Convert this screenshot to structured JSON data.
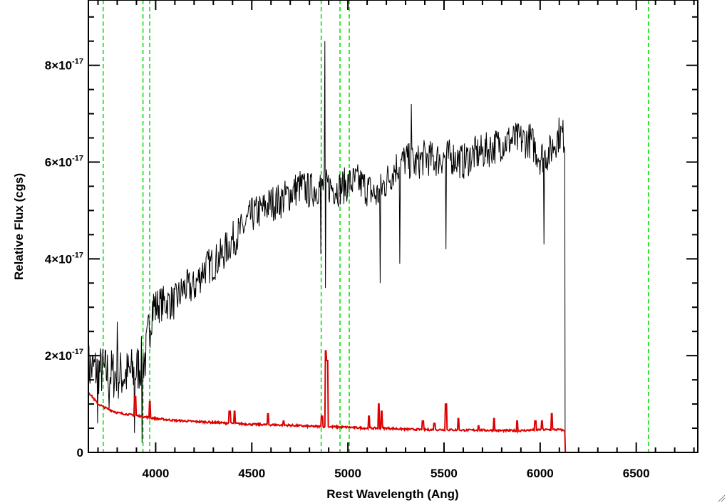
{
  "chart_data": {
    "type": "line",
    "xlabel": "Rest Wavelength (Ang)",
    "ylabel": "Relative Flux (cgs)",
    "xlim": [
      3650,
      6820
    ],
    "ylim": [
      0,
      9.35e-17
    ],
    "x_ticks": [
      {
        "value": 4000,
        "label": "4000"
      },
      {
        "value": 4500,
        "label": "4500"
      },
      {
        "value": 5000,
        "label": "5000"
      },
      {
        "value": 5500,
        "label": "5500"
      },
      {
        "value": 6000,
        "label": "6000"
      },
      {
        "value": 6500,
        "label": "6500"
      }
    ],
    "y_ticks": [
      {
        "value": 0,
        "label": "0",
        "exp": ""
      },
      {
        "value": 2e-17,
        "label": "2×10",
        "exp": "-17"
      },
      {
        "value": 4e-17,
        "label": "4×10",
        "exp": "-17"
      },
      {
        "value": 6e-17,
        "label": "6×10",
        "exp": "-17"
      },
      {
        "value": 8e-17,
        "label": "8×10",
        "exp": "-17"
      }
    ],
    "reference_lines_x": [
      3727,
      3934,
      3969,
      4861,
      4959,
      5007,
      6563
    ],
    "series": [
      {
        "color": "#000000",
        "points": [
          [
            3650,
            1.75e-17
          ],
          [
            3700,
            1.7e-17
          ],
          [
            3750,
            1.65e-17
          ],
          [
            3800,
            1.6e-17
          ],
          [
            3850,
            1.6e-17
          ],
          [
            3900,
            1.7e-17
          ],
          [
            3950,
            2e-17
          ],
          [
            3980,
            3e-17
          ],
          [
            4050,
            3.1e-17
          ],
          [
            4100,
            3.1e-17
          ],
          [
            4150,
            3.4e-17
          ],
          [
            4200,
            3.4e-17
          ],
          [
            4250,
            3.8e-17
          ],
          [
            4300,
            3.9e-17
          ],
          [
            4350,
            4.1e-17
          ],
          [
            4400,
            4.4e-17
          ],
          [
            4450,
            4.6e-17
          ],
          [
            4500,
            4.9e-17
          ],
          [
            4550,
            5e-17
          ],
          [
            4600,
            5.15e-17
          ],
          [
            4650,
            5.2e-17
          ],
          [
            4700,
            5.35e-17
          ],
          [
            4750,
            5.5e-17
          ],
          [
            4800,
            5.4e-17
          ],
          [
            4850,
            5.5e-17
          ],
          [
            4900,
            5.5e-17
          ],
          [
            4950,
            5.45e-17
          ],
          [
            5000,
            5.55e-17
          ],
          [
            5050,
            5.6e-17
          ],
          [
            5100,
            5.45e-17
          ],
          [
            5150,
            5.3e-17
          ],
          [
            5200,
            5.6e-17
          ],
          [
            5250,
            5.9e-17
          ],
          [
            5300,
            6.05e-17
          ],
          [
            5350,
            5.95e-17
          ],
          [
            5400,
            6.1e-17
          ],
          [
            5450,
            6.05e-17
          ],
          [
            5500,
            6.1e-17
          ],
          [
            5550,
            6.1e-17
          ],
          [
            5600,
            6e-17
          ],
          [
            5650,
            6.15e-17
          ],
          [
            5700,
            6.2e-17
          ],
          [
            5750,
            6.3e-17
          ],
          [
            5800,
            6.4e-17
          ],
          [
            5850,
            6.45e-17
          ],
          [
            5900,
            6.45e-17
          ],
          [
            5950,
            6.45e-17
          ],
          [
            6000,
            6.1e-17
          ],
          [
            6050,
            6.2e-17
          ],
          [
            6100,
            6.6e-17
          ],
          [
            6130,
            6.5e-17
          ]
        ],
        "spikes": [
          [
            3700,
            6e-18
          ],
          [
            3760,
            9e-18
          ],
          [
            3800,
            2.7e-17
          ],
          [
            3890,
            4e-18
          ],
          [
            3930,
            2e-18
          ],
          [
            4860,
            4.1e-17
          ],
          [
            4880,
            8.5e-17
          ],
          [
            4883,
            3.4e-17
          ],
          [
            5170,
            3.5e-17
          ],
          [
            5270,
            3.9e-17
          ],
          [
            5510,
            4.2e-17
          ],
          [
            5330,
            7.2e-17
          ],
          [
            6020,
            4.3e-17
          ]
        ],
        "drop": [
          6130,
          0
        ]
      },
      {
        "color": "#dd0000",
        "points": [
          [
            3650,
            1.25e-17
          ],
          [
            3700,
            1e-17
          ],
          [
            3750,
            9e-18
          ],
          [
            3800,
            8.2e-18
          ],
          [
            3900,
            7.6e-18
          ],
          [
            4000,
            7e-18
          ],
          [
            4100,
            6.6e-18
          ],
          [
            4200,
            6.4e-18
          ],
          [
            4300,
            6.2e-18
          ],
          [
            4400,
            6e-18
          ],
          [
            4500,
            5.8e-18
          ],
          [
            4600,
            5.7e-18
          ],
          [
            4700,
            5.6e-18
          ],
          [
            4800,
            5.4e-18
          ],
          [
            4900,
            5.3e-18
          ],
          [
            5000,
            5.2e-18
          ],
          [
            5100,
            5e-18
          ],
          [
            5200,
            5e-18
          ],
          [
            5300,
            4.8e-18
          ],
          [
            5400,
            4.7e-18
          ],
          [
            5500,
            4.7e-18
          ],
          [
            5600,
            4.6e-18
          ],
          [
            5700,
            4.6e-18
          ],
          [
            5800,
            4.5e-18
          ],
          [
            5900,
            4.5e-18
          ],
          [
            6000,
            4.7e-18
          ],
          [
            6100,
            4.7e-18
          ],
          [
            6130,
            4.5e-18
          ],
          [
            6131,
            0
          ],
          [
            6820,
            0
          ]
        ],
        "spikes": [
          [
            3893,
            1.15e-17
          ],
          [
            3970,
            1.05e-17
          ],
          [
            4385,
            8.5e-18
          ],
          [
            4410,
            8.5e-18
          ],
          [
            4585,
            8e-18
          ],
          [
            4665,
            6.5e-18
          ],
          [
            4865,
            7.5e-18
          ],
          [
            4885,
            2.1e-17
          ],
          [
            4892,
            1.9e-17
          ],
          [
            5110,
            7.5e-18
          ],
          [
            5160,
            1e-17
          ],
          [
            5175,
            8.5e-18
          ],
          [
            5390,
            6.5e-18
          ],
          [
            5450,
            6e-18
          ],
          [
            5510,
            1e-17
          ],
          [
            5575,
            7e-18
          ],
          [
            5680,
            5.5e-18
          ],
          [
            5760,
            7e-18
          ],
          [
            5880,
            6.5e-18
          ],
          [
            5975,
            6.5e-18
          ],
          [
            6010,
            6.5e-18
          ],
          [
            6060,
            8e-18
          ]
        ]
      }
    ],
    "colors": {
      "axis": "#000000",
      "reference": "#00dd00",
      "spectrum": "#000000",
      "model": "#dd0000"
    }
  }
}
